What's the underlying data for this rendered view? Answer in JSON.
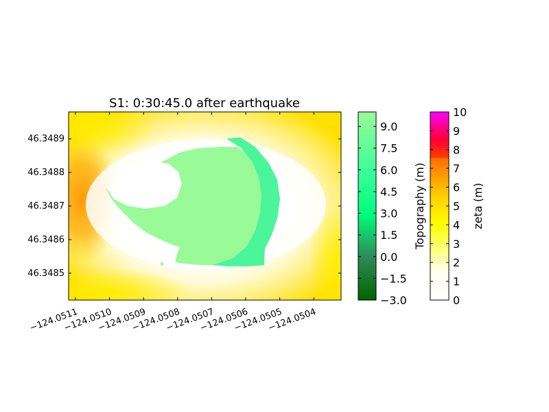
{
  "chart_data": {
    "type": "heatmap",
    "title": "S1: 0:30:45.0 after earthquake",
    "x_ticks": [
      "−124.0511",
      "−124.0510",
      "−124.0509",
      "−124.0508",
      "−124.0507",
      "−124.0506",
      "−124.0505",
      "−124.0504"
    ],
    "x_tick_values": [
      -124.0511,
      -124.051,
      -124.0509,
      -124.0508,
      -124.0507,
      -124.0506,
      -124.0505,
      -124.0504
    ],
    "x_range": [
      -124.05112,
      -124.05032
    ],
    "y_ticks": [
      "46.3489",
      "46.3488",
      "46.3487",
      "46.3486",
      "46.3485"
    ],
    "y_tick_values": [
      46.3489,
      46.3488,
      46.3487,
      46.3486,
      46.3485
    ],
    "y_range": [
      46.34842,
      46.34898
    ],
    "colorbars": [
      {
        "label": "Topography (m)",
        "ticks": [
          "−3.0",
          "−1.5",
          "0.0",
          "1.5",
          "3.0",
          "4.5",
          "6.0",
          "7.5",
          "9.0"
        ],
        "tick_values": [
          -3.0,
          -1.5,
          0.0,
          1.5,
          3.0,
          4.5,
          6.0,
          7.5,
          9.0
        ],
        "range": [
          -3.0,
          10.0
        ],
        "colors": [
          "#006400",
          "#2e8b57",
          "#00ff7f",
          "#98fb98"
        ]
      },
      {
        "label": "zeta (m)",
        "ticks": [
          "0",
          "1",
          "2",
          "3",
          "4",
          "5",
          "6",
          "7",
          "8",
          "9",
          "10"
        ],
        "tick_values": [
          0,
          1,
          2,
          3,
          4,
          5,
          6,
          7,
          8,
          9,
          10
        ],
        "range": [
          0,
          10
        ],
        "colors": [
          "#ffffff",
          "#ffff00",
          "#ff8c00",
          "#ff0000",
          "#ff00ff"
        ]
      }
    ]
  }
}
